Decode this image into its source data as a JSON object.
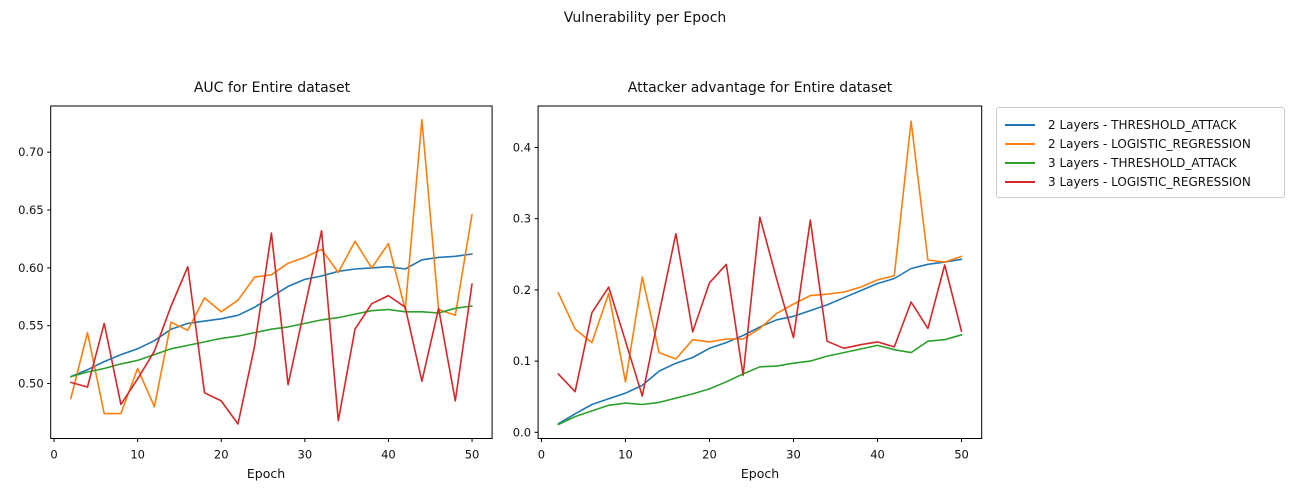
{
  "figure": {
    "suptitle": "Vulnerability per Epoch",
    "background": "#ffffff"
  },
  "legend": {
    "position": "outside-upper-right",
    "entries": [
      {
        "label": "2 Layers - THRESHOLD_ATTACK",
        "color": "#1f77b4"
      },
      {
        "label": "2 Layers - LOGISTIC_REGRESSION",
        "color": "#ff7f0e"
      },
      {
        "label": "3 Layers - THRESHOLD_ATTACK",
        "color": "#2ca02c"
      },
      {
        "label": "3 Layers - LOGISTIC_REGRESSION",
        "color": "#d62728"
      }
    ]
  },
  "chart_data": [
    {
      "type": "line",
      "title": "AUC for Entire dataset",
      "xlabel": "Epoch",
      "grid": false,
      "xlim": [
        -0.4,
        52.4
      ],
      "ylim": [
        0.4525,
        0.7399
      ],
      "xticks": [
        0,
        10,
        20,
        30,
        40,
        50
      ],
      "ytick_values": [
        0.5,
        0.55,
        0.6,
        0.65,
        0.7
      ],
      "ytick_labels": [
        "0.50",
        "0.55",
        "0.60",
        "0.65",
        "0.70"
      ],
      "x": [
        2,
        4,
        6,
        8,
        10,
        12,
        14,
        16,
        18,
        20,
        22,
        24,
        26,
        28,
        30,
        32,
        34,
        36,
        38,
        40,
        42,
        44,
        46,
        48,
        50
      ],
      "series": [
        {
          "name": "2 Layers - THRESHOLD_ATTACK",
          "color": "#1f77b4",
          "values": [
            0.506,
            0.512,
            0.519,
            0.525,
            0.53,
            0.537,
            0.547,
            0.552,
            0.554,
            0.556,
            0.559,
            0.566,
            0.575,
            0.584,
            0.59,
            0.593,
            0.597,
            0.599,
            0.6,
            0.601,
            0.599,
            0.607,
            0.609,
            0.61,
            0.612
          ]
        },
        {
          "name": "2 Layers - LOGISTIC_REGRESSION",
          "color": "#ff7f0e",
          "values": [
            0.487,
            0.544,
            0.474,
            0.474,
            0.513,
            0.48,
            0.553,
            0.546,
            0.574,
            0.562,
            0.572,
            0.592,
            0.594,
            0.604,
            0.609,
            0.616,
            0.596,
            0.623,
            0.6,
            0.621,
            0.564,
            0.728,
            0.564,
            0.559,
            0.646
          ]
        },
        {
          "name": "3 Layers - THRESHOLD_ATTACK",
          "color": "#2ca02c",
          "values": [
            0.506,
            0.51,
            0.513,
            0.517,
            0.52,
            0.525,
            0.53,
            0.533,
            0.536,
            0.539,
            0.541,
            0.544,
            0.547,
            0.549,
            0.552,
            0.555,
            0.557,
            0.56,
            0.563,
            0.564,
            0.562,
            0.562,
            0.561,
            0.565,
            0.567
          ]
        },
        {
          "name": "3 Layers - LOGISTIC_REGRESSION",
          "color": "#d62728",
          "values": [
            0.501,
            0.497,
            0.552,
            0.482,
            0.504,
            0.528,
            0.567,
            0.601,
            0.492,
            0.485,
            0.465,
            0.533,
            0.63,
            0.499,
            0.566,
            0.632,
            0.468,
            0.547,
            0.569,
            0.576,
            0.566,
            0.502,
            0.565,
            0.485,
            0.586
          ]
        }
      ]
    },
    {
      "type": "line",
      "title": "Attacker advantage for Entire dataset",
      "xlabel": "Epoch",
      "grid": false,
      "xlim": [
        -0.4,
        52.4
      ],
      "ylim": [
        -0.0087,
        0.4583
      ],
      "xticks": [
        0,
        10,
        20,
        30,
        40,
        50
      ],
      "ytick_values": [
        0.0,
        0.1,
        0.2,
        0.3,
        0.4
      ],
      "ytick_labels": [
        "0.0",
        "0.1",
        "0.2",
        "0.3",
        "0.4"
      ],
      "x": [
        2,
        4,
        6,
        8,
        10,
        12,
        14,
        16,
        18,
        20,
        22,
        24,
        26,
        28,
        30,
        32,
        34,
        36,
        38,
        40,
        42,
        44,
        46,
        48,
        50
      ],
      "series": [
        {
          "name": "2 Layers - THRESHOLD_ATTACK",
          "color": "#1f77b4",
          "values": [
            0.012,
            0.026,
            0.039,
            0.047,
            0.055,
            0.066,
            0.086,
            0.097,
            0.105,
            0.118,
            0.126,
            0.136,
            0.148,
            0.158,
            0.163,
            0.171,
            0.179,
            0.189,
            0.199,
            0.209,
            0.216,
            0.23,
            0.236,
            0.239,
            0.243
          ]
        },
        {
          "name": "2 Layers - LOGISTIC_REGRESSION",
          "color": "#ff7f0e",
          "values": [
            0.196,
            0.145,
            0.126,
            0.195,
            0.071,
            0.218,
            0.112,
            0.103,
            0.13,
            0.127,
            0.131,
            0.131,
            0.146,
            0.167,
            0.18,
            0.192,
            0.194,
            0.197,
            0.204,
            0.214,
            0.22,
            0.437,
            0.242,
            0.239,
            0.247
          ]
        },
        {
          "name": "3 Layers - THRESHOLD_ATTACK",
          "color": "#2ca02c",
          "values": [
            0.011,
            0.022,
            0.03,
            0.038,
            0.041,
            0.039,
            0.042,
            0.048,
            0.054,
            0.061,
            0.071,
            0.082,
            0.092,
            0.093,
            0.097,
            0.1,
            0.107,
            0.112,
            0.117,
            0.122,
            0.116,
            0.112,
            0.128,
            0.13,
            0.137
          ]
        },
        {
          "name": "3 Layers - LOGISTIC_REGRESSION",
          "color": "#d62728",
          "values": [
            0.082,
            0.057,
            0.168,
            0.204,
            0.128,
            0.051,
            0.167,
            0.279,
            0.141,
            0.21,
            0.236,
            0.08,
            0.302,
            0.215,
            0.133,
            0.298,
            0.128,
            0.118,
            0.123,
            0.127,
            0.12,
            0.183,
            0.146,
            0.235,
            0.142
          ]
        }
      ]
    }
  ]
}
